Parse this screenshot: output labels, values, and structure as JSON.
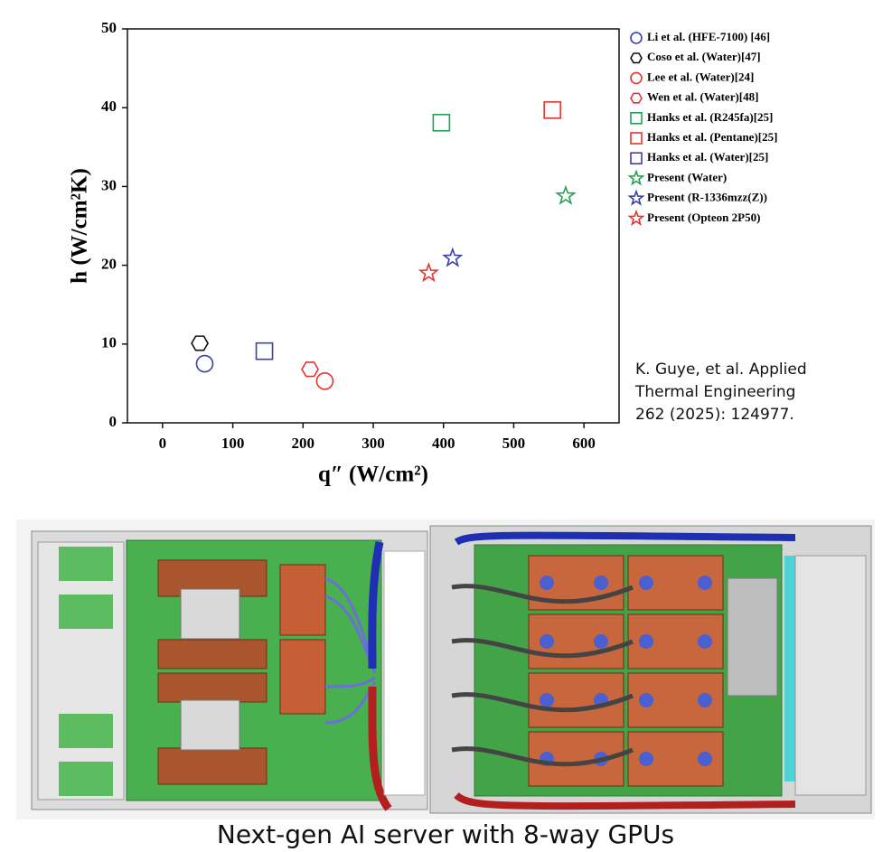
{
  "chart_data": {
    "type": "scatter",
    "xlabel": "q″ (W/cm²)",
    "ylabel": "h (W/cm²K)",
    "xlim": [
      -50,
      650
    ],
    "xticks": [
      0,
      100,
      200,
      300,
      400,
      500,
      600
    ],
    "ylim": [
      0,
      50
    ],
    "yticks": [
      0,
      10,
      20,
      30,
      40,
      50
    ],
    "series": [
      {
        "name": "Li et al. (HFE-7100) [46]",
        "color": "#3b3fa8",
        "marker": "circle",
        "x": [
          60
        ],
        "y": [
          7.5
        ]
      },
      {
        "name": "Coso et al. (Water)[47]",
        "color": "#111111",
        "marker": "hexagon",
        "x": [
          53
        ],
        "y": [
          10.1
        ]
      },
      {
        "name": "Lee et al. (Water)[24]",
        "color": "#e8322e",
        "marker": "circle",
        "x": [
          231
        ],
        "y": [
          5.3
        ]
      },
      {
        "name": "Wen et al. (Water)[48]",
        "color": "#e8322e",
        "marker": "hexagon",
        "x": [
          210
        ],
        "y": [
          6.8
        ]
      },
      {
        "name": "Hanks et al. (R245fa)[25]",
        "color": "#1fa352",
        "marker": "square",
        "x": [
          397
        ],
        "y": [
          38.1
        ]
      },
      {
        "name": "Hanks et al. (Pentane)[25]",
        "color": "#e8322e",
        "marker": "square",
        "x": [
          555
        ],
        "y": [
          39.7
        ]
      },
      {
        "name": "Hanks et al. (Water)[25]",
        "color": "#3b3fa8",
        "marker": "square",
        "x": [
          145
        ],
        "y": [
          9.1
        ]
      },
      {
        "name": "Present (Water)",
        "color": "#1fa352",
        "marker": "star",
        "x": [
          574
        ],
        "y": [
          28.8
        ]
      },
      {
        "name": "Present (R-1336mzz(Z))",
        "color": "#3b3fa8",
        "marker": "star",
        "x": [
          413
        ],
        "y": [
          20.9
        ]
      },
      {
        "name": "Present (Opteon 2P50)",
        "color": "#e8322e",
        "marker": "star",
        "x": [
          379
        ],
        "y": [
          19.0
        ]
      }
    ]
  },
  "citation": [
    "K. Guye, et al. Applied",
    "Thermal Engineering",
    "262 (2025): 124977."
  ],
  "caption": "Next-gen AI server with 8-way GPUs"
}
